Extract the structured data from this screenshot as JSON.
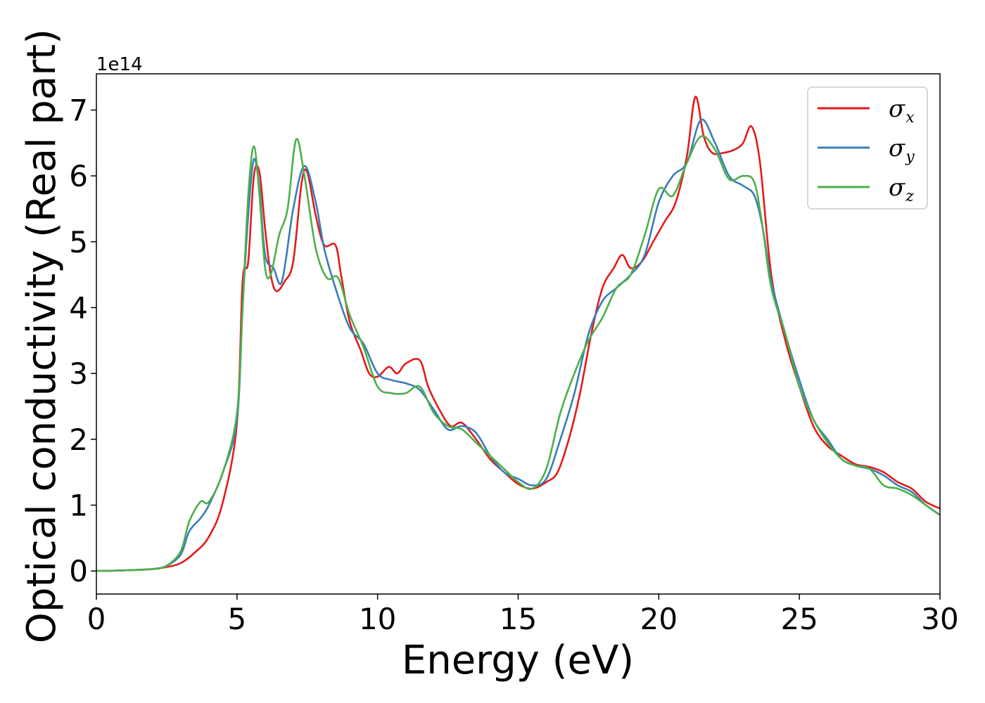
{
  "chart_data": {
    "type": "line",
    "title": "",
    "xlabel": "Energy (eV)",
    "ylabel": "Optical conductivity (Real part)",
    "y_offset_label": "1e14",
    "xlim": [
      0,
      30
    ],
    "ylim": [
      -0.35,
      7.55
    ],
    "xticks": [
      0,
      5,
      10,
      15,
      20,
      25,
      30
    ],
    "xtick_labels": [
      "0",
      "5",
      "10",
      "15",
      "20",
      "25",
      "30"
    ],
    "yticks": [
      0,
      1,
      2,
      3,
      4,
      5,
      6,
      7
    ],
    "ytick_labels": [
      "0",
      "1",
      "2",
      "3",
      "4",
      "5",
      "6",
      "7"
    ],
    "grid": false,
    "legend_position": "top-right",
    "series": [
      {
        "name": "σx",
        "symbol": "σ",
        "subscript": "x",
        "color": "#e41a1c",
        "points": [
          [
            0,
            0
          ],
          [
            1,
            0.01
          ],
          [
            2,
            0.03
          ],
          [
            2.5,
            0.06
          ],
          [
            3,
            0.12
          ],
          [
            3.5,
            0.28
          ],
          [
            4,
            0.52
          ],
          [
            4.5,
            1.05
          ],
          [
            5,
            2.25
          ],
          [
            5.2,
            4.4
          ],
          [
            5.4,
            4.7
          ],
          [
            5.6,
            6.0
          ],
          [
            5.8,
            6.05
          ],
          [
            6.0,
            5.2
          ],
          [
            6.2,
            4.5
          ],
          [
            6.4,
            4.25
          ],
          [
            6.7,
            4.4
          ],
          [
            7.0,
            4.7
          ],
          [
            7.3,
            5.9
          ],
          [
            7.5,
            6.05
          ],
          [
            7.8,
            5.4
          ],
          [
            8.1,
            4.95
          ],
          [
            8.5,
            4.95
          ],
          [
            8.7,
            4.5
          ],
          [
            9.0,
            3.8
          ],
          [
            9.4,
            3.35
          ],
          [
            9.7,
            3.0
          ],
          [
            10.0,
            2.95
          ],
          [
            10.4,
            3.1
          ],
          [
            10.7,
            3.0
          ],
          [
            11.0,
            3.15
          ],
          [
            11.5,
            3.2
          ],
          [
            11.8,
            2.8
          ],
          [
            12.2,
            2.45
          ],
          [
            12.6,
            2.2
          ],
          [
            13.0,
            2.25
          ],
          [
            13.5,
            2.0
          ],
          [
            14.0,
            1.7
          ],
          [
            14.5,
            1.5
          ],
          [
            15.0,
            1.32
          ],
          [
            15.5,
            1.25
          ],
          [
            16.0,
            1.35
          ],
          [
            16.4,
            1.5
          ],
          [
            16.8,
            2.0
          ],
          [
            17.2,
            2.7
          ],
          [
            17.6,
            3.6
          ],
          [
            18.0,
            4.3
          ],
          [
            18.4,
            4.6
          ],
          [
            18.7,
            4.8
          ],
          [
            19.0,
            4.6
          ],
          [
            19.4,
            4.7
          ],
          [
            19.8,
            5.0
          ],
          [
            20.2,
            5.3
          ],
          [
            20.6,
            5.6
          ],
          [
            21.0,
            6.3
          ],
          [
            21.3,
            7.2
          ],
          [
            21.6,
            6.6
          ],
          [
            21.9,
            6.35
          ],
          [
            22.3,
            6.35
          ],
          [
            22.7,
            6.4
          ],
          [
            23.0,
            6.5
          ],
          [
            23.3,
            6.75
          ],
          [
            23.6,
            6.2
          ],
          [
            24.0,
            4.5
          ],
          [
            24.5,
            3.5
          ],
          [
            25.0,
            2.8
          ],
          [
            25.5,
            2.2
          ],
          [
            26.0,
            1.9
          ],
          [
            26.5,
            1.75
          ],
          [
            27.0,
            1.62
          ],
          [
            27.5,
            1.58
          ],
          [
            28.0,
            1.5
          ],
          [
            28.5,
            1.35
          ],
          [
            29.0,
            1.25
          ],
          [
            29.5,
            1.05
          ],
          [
            30.0,
            0.95
          ]
        ]
      },
      {
        "name": "σy",
        "symbol": "σ",
        "subscript": "y",
        "color": "#377eb8",
        "points": [
          [
            0,
            0
          ],
          [
            1,
            0.01
          ],
          [
            2,
            0.03
          ],
          [
            2.5,
            0.08
          ],
          [
            3,
            0.25
          ],
          [
            3.3,
            0.6
          ],
          [
            3.7,
            0.8
          ],
          [
            4,
            1.0
          ],
          [
            4.5,
            1.5
          ],
          [
            5,
            2.3
          ],
          [
            5.2,
            4.0
          ],
          [
            5.4,
            5.4
          ],
          [
            5.6,
            6.25
          ],
          [
            5.8,
            5.8
          ],
          [
            6.0,
            4.8
          ],
          [
            6.3,
            4.6
          ],
          [
            6.6,
            4.4
          ],
          [
            7.0,
            5.5
          ],
          [
            7.4,
            6.15
          ],
          [
            7.8,
            5.6
          ],
          [
            8.1,
            4.9
          ],
          [
            8.5,
            4.3
          ],
          [
            9.0,
            3.7
          ],
          [
            9.5,
            3.45
          ],
          [
            10.0,
            3.0
          ],
          [
            10.5,
            2.9
          ],
          [
            11.0,
            2.85
          ],
          [
            11.5,
            2.75
          ],
          [
            12.0,
            2.45
          ],
          [
            12.5,
            2.15
          ],
          [
            13.0,
            2.2
          ],
          [
            13.5,
            2.1
          ],
          [
            14.0,
            1.75
          ],
          [
            14.5,
            1.5
          ],
          [
            15.0,
            1.4
          ],
          [
            15.5,
            1.3
          ],
          [
            16.0,
            1.4
          ],
          [
            16.5,
            2.0
          ],
          [
            17.0,
            2.7
          ],
          [
            17.5,
            3.6
          ],
          [
            18.0,
            4.1
          ],
          [
            18.5,
            4.3
          ],
          [
            19.0,
            4.5
          ],
          [
            19.5,
            4.8
          ],
          [
            20.0,
            5.6
          ],
          [
            20.5,
            6.0
          ],
          [
            21.0,
            6.2
          ],
          [
            21.5,
            6.85
          ],
          [
            22.0,
            6.5
          ],
          [
            22.5,
            6.0
          ],
          [
            23.0,
            5.85
          ],
          [
            23.4,
            5.7
          ],
          [
            23.7,
            5.2
          ],
          [
            24.0,
            4.4
          ],
          [
            24.5,
            3.6
          ],
          [
            25.0,
            2.9
          ],
          [
            25.5,
            2.3
          ],
          [
            26.0,
            2.0
          ],
          [
            26.5,
            1.7
          ],
          [
            27.0,
            1.6
          ],
          [
            27.5,
            1.55
          ],
          [
            28.0,
            1.45
          ],
          [
            28.5,
            1.3
          ],
          [
            29.0,
            1.2
          ],
          [
            29.5,
            1.0
          ],
          [
            30.0,
            0.85
          ]
        ]
      },
      {
        "name": "σz",
        "symbol": "σ",
        "subscript": "z",
        "color": "#4daf4a",
        "points": [
          [
            0,
            0
          ],
          [
            1,
            0.01
          ],
          [
            2,
            0.03
          ],
          [
            2.5,
            0.08
          ],
          [
            3,
            0.3
          ],
          [
            3.3,
            0.75
          ],
          [
            3.7,
            1.05
          ],
          [
            4,
            1.05
          ],
          [
            4.5,
            1.5
          ],
          [
            5,
            2.4
          ],
          [
            5.2,
            4.0
          ],
          [
            5.4,
            5.7
          ],
          [
            5.6,
            6.45
          ],
          [
            5.8,
            5.7
          ],
          [
            6.0,
            4.6
          ],
          [
            6.2,
            4.5
          ],
          [
            6.5,
            5.1
          ],
          [
            6.8,
            5.5
          ],
          [
            7.1,
            6.55
          ],
          [
            7.4,
            6.0
          ],
          [
            7.8,
            4.9
          ],
          [
            8.2,
            4.45
          ],
          [
            8.6,
            4.45
          ],
          [
            9.0,
            3.9
          ],
          [
            9.5,
            3.4
          ],
          [
            10.0,
            2.8
          ],
          [
            10.5,
            2.7
          ],
          [
            11.0,
            2.7
          ],
          [
            11.5,
            2.8
          ],
          [
            12.0,
            2.4
          ],
          [
            12.5,
            2.2
          ],
          [
            13.0,
            2.15
          ],
          [
            13.5,
            1.95
          ],
          [
            14.0,
            1.75
          ],
          [
            14.5,
            1.55
          ],
          [
            15.0,
            1.35
          ],
          [
            15.5,
            1.25
          ],
          [
            16.0,
            1.55
          ],
          [
            16.5,
            2.4
          ],
          [
            17.0,
            3.0
          ],
          [
            17.5,
            3.5
          ],
          [
            18.0,
            3.85
          ],
          [
            18.5,
            4.3
          ],
          [
            19.0,
            4.5
          ],
          [
            19.5,
            5.1
          ],
          [
            20.0,
            5.8
          ],
          [
            20.5,
            5.7
          ],
          [
            21.0,
            6.2
          ],
          [
            21.5,
            6.6
          ],
          [
            22.0,
            6.4
          ],
          [
            22.5,
            5.95
          ],
          [
            23.0,
            6.0
          ],
          [
            23.4,
            5.9
          ],
          [
            23.7,
            5.2
          ],
          [
            24.0,
            4.3
          ],
          [
            24.5,
            3.6
          ],
          [
            25.0,
            2.8
          ],
          [
            25.5,
            2.3
          ],
          [
            26.0,
            1.95
          ],
          [
            26.5,
            1.7
          ],
          [
            27.0,
            1.6
          ],
          [
            27.5,
            1.55
          ],
          [
            28.0,
            1.3
          ],
          [
            28.5,
            1.25
          ],
          [
            29.0,
            1.15
          ],
          [
            29.5,
            1.0
          ],
          [
            30.0,
            0.85
          ]
        ]
      }
    ]
  }
}
